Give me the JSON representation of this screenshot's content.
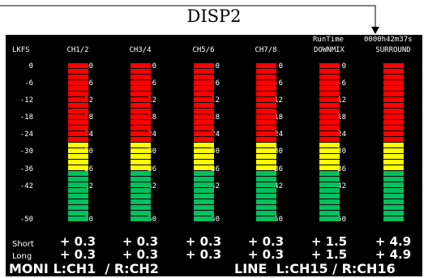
{
  "callout": {
    "title": "DISP2"
  },
  "header": {
    "runtime_label": "RunTime",
    "runtime_value": "0000h42m37s",
    "unit_label": "LKFS"
  },
  "meters": [
    {
      "label": "CH1/2",
      "level": 0.3,
      "short": "+ 0.3",
      "long": "+ 0.3"
    },
    {
      "label": "CH3/4",
      "level": 0.3,
      "short": "+ 0.3",
      "long": "+ 0.3"
    },
    {
      "label": "CH5/6",
      "level": 0.3,
      "short": "+ 0.3",
      "long": "+ 0.3"
    },
    {
      "label": "CH7/8",
      "level": 0.3,
      "short": "+ 0.3",
      "long": "+ 0.3"
    },
    {
      "label": "DOWNMIX",
      "level": 1.5,
      "short": "+ 1.5",
      "long": "+ 1.5"
    },
    {
      "label": "SURROUND",
      "level": 4.9,
      "short": "+ 4.9",
      "long": "+ 4.9"
    }
  ],
  "scale": [
    "0",
    "-6",
    "-12",
    "-18",
    "-24",
    "-30",
    "-36",
    "-42",
    "-50"
  ],
  "rows": {
    "short_label": "Short",
    "long_label": "Long"
  },
  "footer": {
    "moni_text": "MONI L:CH1  / R:CH2",
    "line_text": "LINE  L:CH15 / R:CH16"
  },
  "colors": {
    "high": "#ff0000",
    "mid": "#ffff00",
    "low": "#00c060",
    "background": "#000000",
    "separator": "#000000"
  }
}
